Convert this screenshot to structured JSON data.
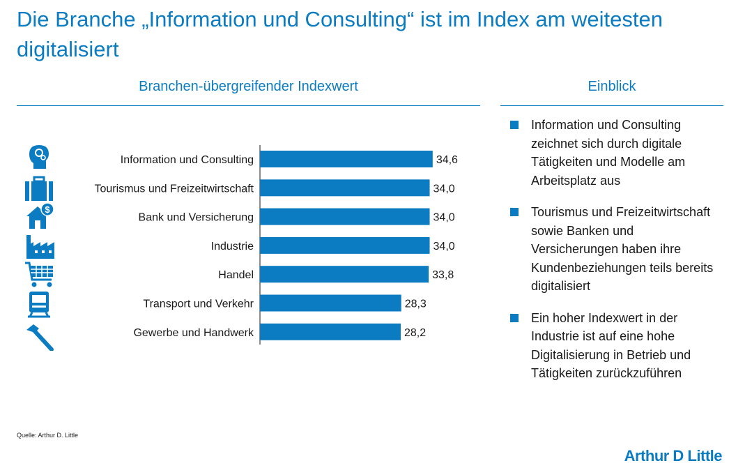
{
  "title": "Die Branche „Information und Consulting“ ist im Index am weitesten digitalisiert",
  "left_section_title": "Branchen-übergreifender Indexwert",
  "right_section_title": "Einblick",
  "colors": {
    "accent": "#0b7cc2",
    "bar": "#0b7cc2"
  },
  "chart_data": {
    "type": "bar",
    "orientation": "horizontal",
    "title": "Branchen-übergreifender Indexwert",
    "categories": [
      "Information und Consulting",
      "Tourismus und Freizeitwirtschaft",
      "Bank und Versicherung",
      "Industrie",
      "Handel",
      "Transport und Verkehr",
      "Gewerbe und Handwerk"
    ],
    "values": [
      34.6,
      34.0,
      34.0,
      34.0,
      33.8,
      28.3,
      28.2
    ],
    "value_labels": [
      "34,6",
      "34,0",
      "34,0",
      "34,0",
      "33,8",
      "28,3",
      "28,2"
    ],
    "icons": [
      "consultant-head-icon",
      "suitcase-icon",
      "house-money-icon",
      "factory-icon",
      "shopping-cart-icon",
      "train-icon",
      "hammer-icon"
    ],
    "xlim": [
      0,
      36.3
    ],
    "xlabel": "",
    "ylabel": "",
    "grid": false
  },
  "insights": [
    "Information und Consulting zeichnet sich durch digitale Tätigkeiten und Modelle am Arbeitsplatz aus",
    "Tourismus und Freizeitwirtschaft sowie Banken und Versicherungen haben ihre Kundenbeziehungen teils bereits digitalisiert",
    "Ein hoher Indexwert in der Industrie ist auf eine hohe Digitalisierung in Betrieb und Tätigkeiten zurückzuführen"
  ],
  "source": "Quelle: Arthur D. Little",
  "brand": "Arthur D Little"
}
